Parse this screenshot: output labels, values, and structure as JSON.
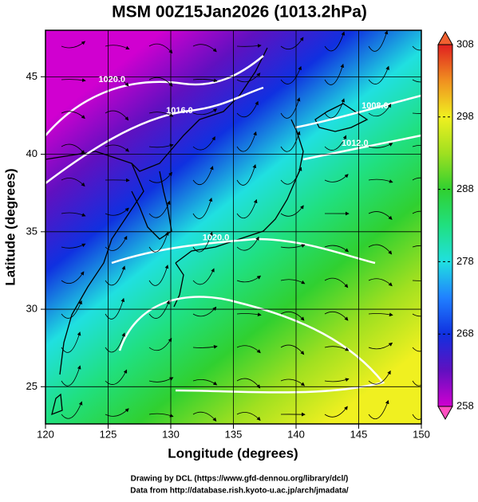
{
  "chart_data": {
    "type": "map",
    "title": "MSM 00Z15Jan2026 (1013.2hPa)",
    "x_label": "Longitude (degrees)",
    "y_label": "Latitude  (degrees)",
    "xlim": [
      120,
      150
    ],
    "xticks": [
      120,
      125,
      130,
      135,
      140,
      145,
      150
    ],
    "ylim": [
      22.6,
      48
    ],
    "yticks": [
      25,
      30,
      35,
      40,
      45
    ],
    "grid": true,
    "colorbar": {
      "lim": [
        258,
        308
      ],
      "ticks": [
        258,
        268,
        278,
        288,
        298,
        308
      ],
      "colors": [
        "#d000d0",
        "#6010c0",
        "#1030e0",
        "#2080ff",
        "#20e0e0",
        "#20e080",
        "#30d030",
        "#a0e020",
        "#f0f020",
        "#f09020",
        "#e02020"
      ]
    },
    "contour_labels": [
      {
        "text": "1020.0",
        "x": 125.3,
        "y": 44.8
      },
      {
        "text": "1016.0",
        "x": 130.7,
        "y": 42.8
      },
      {
        "text": "1008.0",
        "x": 146.3,
        "y": 43.1
      },
      {
        "text": "1012.0",
        "x": 144.7,
        "y": 40.7
      },
      {
        "text": "1020.0",
        "x": 133.6,
        "y": 34.6
      }
    ],
    "footer": [
      "Drawing by DCL (https://www.gfd-dennou.org/library/dcl/)",
      "Data from http://database.rish.kyoto-u.ac.jp/arch/jmadata/"
    ]
  }
}
